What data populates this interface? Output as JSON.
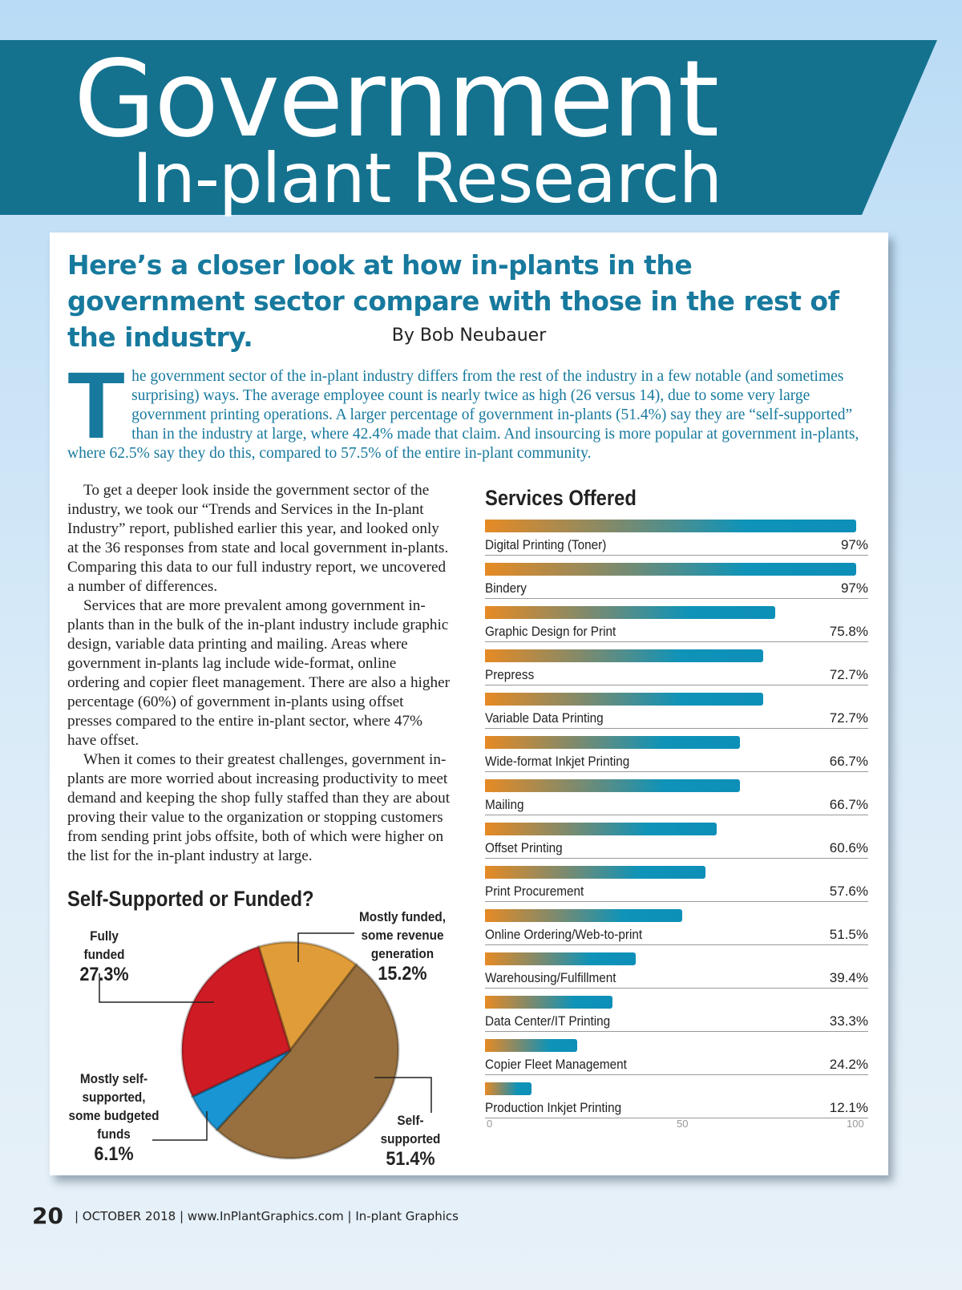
{
  "header": {
    "title_line1": "Government",
    "title_line2": "In-plant Research",
    "banner_color": "#14728f"
  },
  "article": {
    "subtitle": "Here’s a closer look at how in-plants in the government sector compare with those in the rest of the industry.",
    "byline": "By Bob Neubauer",
    "dropcap": "T",
    "intro": "he government sector of the in-plant industry differs from the rest of the industry in a few notable (and sometimes surprising) ways. The average employee count is nearly twice as high (26 versus 14), due to some very large government printing operations. A larger percentage of government in-plants (51.4%) say they are “self-supported” than in the industry at large, where 42.4% made that claim. And insourcing is more popular at government in-plants, where 62.5% say they do this, compared to 57.5% of the entire in-plant community.",
    "paragraphs": [
      "To get a deeper look inside the government sector of the industry, we took our “Trends and Services in the In-plant Industry” report, published earlier this year, and looked only at the 36 responses from state and local government in-plants. Comparing this data to our full industry report, we uncovered a number of differences.",
      "Services that are more prevalent among government in-plants than in the bulk of the in-plant industry include graphic design, variable data printing and mailing. Areas where government in-plants lag include wide-format, online ordering and copier fleet management. There are also a higher percentage (60%) of government in-plants using offset presses compared to the entire in-plant sector, where 47% have offset.",
      "When it comes to their greatest challenges, government in-plants are more worried about increasing productivity to meet demand and keeping the shop fully staffed than they are about proving their value to the organization or stopping customers from sending print jobs offsite, both of which were higher on the list for the in-plant industry at large."
    ]
  },
  "chart_data": [
    {
      "type": "bar",
      "orientation": "horizontal",
      "title": "Services Offered",
      "categories": [
        "Digital Printing (Toner)",
        "Bindery",
        "Graphic Design for Print",
        "Prepress",
        "Variable Data Printing",
        "Wide-format Inkjet Printing",
        "Mailing",
        "Offset Printing",
        "Print Procurement",
        "Online Ordering/Web-to-print",
        "Warehousing/Fulfillment",
        "Data Center/IT Printing",
        "Copier Fleet Management",
        "Production Inkjet Printing"
      ],
      "values": [
        97,
        97,
        75.8,
        72.7,
        72.7,
        66.7,
        66.7,
        60.6,
        57.6,
        51.5,
        39.4,
        33.3,
        24.2,
        12.1
      ],
      "value_labels": [
        "97%",
        "97%",
        "75.8%",
        "72.7%",
        "72.7%",
        "66.7%",
        "66.7%",
        "60.6%",
        "57.6%",
        "51.5%",
        "39.4%",
        "33.3%",
        "24.2%",
        "12.1%"
      ],
      "xlim": [
        0,
        100
      ],
      "ticks": [
        "0",
        "50",
        "100"
      ],
      "bar_gradient": [
        "#e68a24",
        "#0f93b8"
      ]
    },
    {
      "type": "pie",
      "title": "Self-Supported or Funded?",
      "slices": [
        {
          "label": "Mostly funded, some revenue generation",
          "value": 15.2,
          "display": "15.2%",
          "color": "#e09c38"
        },
        {
          "label": "Self-supported",
          "value": 51.4,
          "display": "51.4%",
          "color": "#98703f"
        },
        {
          "label": "Mostly self-supported, some budgeted funds",
          "value": 6.1,
          "display": "6.1%",
          "color": "#1a95d3"
        },
        {
          "label": "Fully funded",
          "value": 27.3,
          "display": "27.3%",
          "color": "#cf1c24"
        }
      ]
    }
  ],
  "footer": {
    "page_number": "20",
    "text": "| OCTOBER 2018 | www.InPlantGraphics.com | In-plant Graphics"
  }
}
